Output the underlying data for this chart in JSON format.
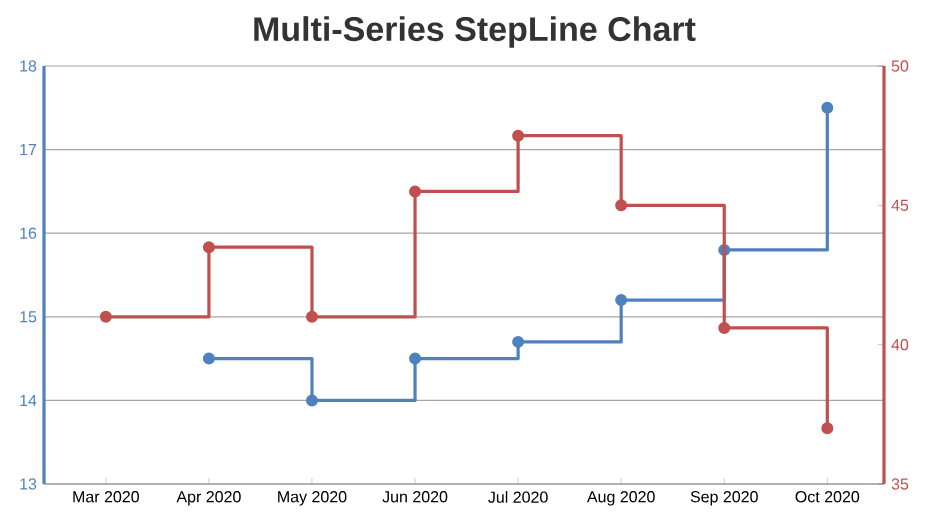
{
  "chart_data": {
    "type": "step",
    "title": "Multi-Series StepLine Chart",
    "categories": [
      "Mar 2020",
      "Apr 2020",
      "May 2020",
      "Jun 2020",
      "Jul 2020",
      "Aug 2020",
      "Sep 2020",
      "Oct 2020"
    ],
    "series": [
      {
        "color": "#4f81bc",
        "values": [
          null,
          14.5,
          14,
          14.5,
          14.7,
          15.2,
          15.8,
          17.5
        ]
      },
      {
        "color": "#c0504e",
        "axis": "y2",
        "values": [
          41,
          43.5,
          41,
          45.5,
          47.5,
          45,
          40.6,
          37
        ]
      }
    ],
    "ylim": [
      13,
      18
    ],
    "yticks": [
      13,
      14,
      15,
      16,
      17,
      18
    ],
    "y2lim": [
      35,
      50
    ],
    "y2ticks": [
      35,
      40,
      45,
      50
    ],
    "grid": "y",
    "marker": "circle",
    "line_style": "solid"
  }
}
